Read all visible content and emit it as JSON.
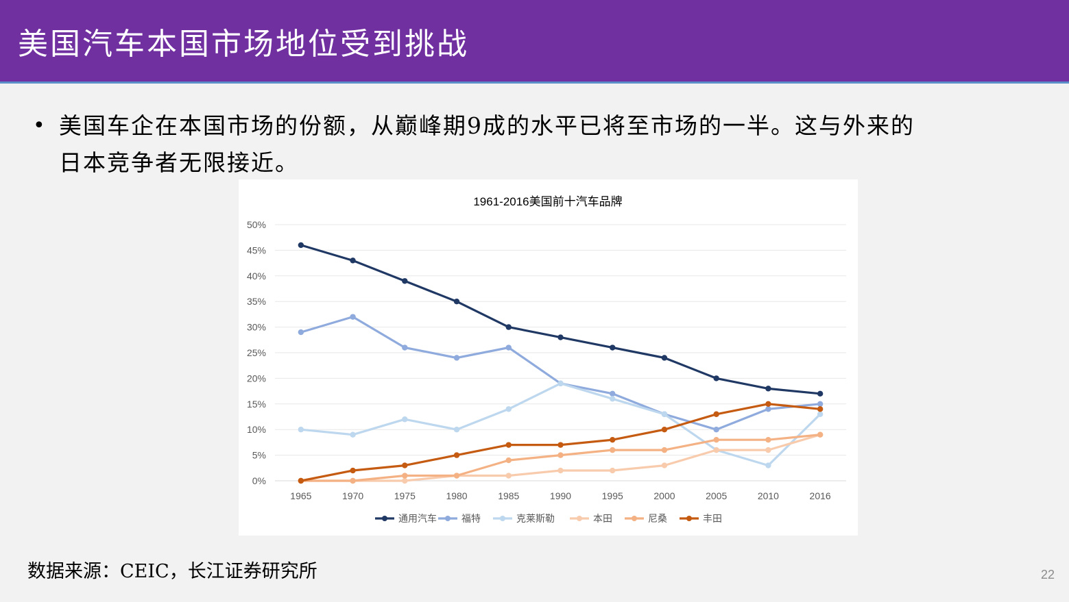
{
  "slide": {
    "title": "美国汽车本国市场地位受到挑战",
    "bullet_line1": "美国车企在本国市场的份额，从巅峰期9成的水平已将至市场的一半。这与外来的",
    "bullet_line2": "日本竞争者无限接近。",
    "source": "数据来源：CEIC，长江证券研究所",
    "page_number": "22"
  },
  "chart_data": {
    "type": "line",
    "title": "1961-2016美国前十汽车品牌",
    "xlabel": "",
    "ylabel": "",
    "ylim": [
      0,
      0.5
    ],
    "y_ticks": [
      "0%",
      "5%",
      "10%",
      "15%",
      "20%",
      "25%",
      "30%",
      "35%",
      "40%",
      "45%",
      "50%"
    ],
    "grid": true,
    "legend_position": "bottom",
    "categories": [
      "1965",
      "1970",
      "1975",
      "1980",
      "1985",
      "1990",
      "1995",
      "2000",
      "2005",
      "2010",
      "2016"
    ],
    "series": [
      {
        "name": "通用汽车",
        "color": "#203864",
        "values": [
          0.46,
          0.43,
          0.39,
          0.35,
          0.3,
          0.28,
          0.26,
          0.24,
          0.2,
          0.18,
          0.17
        ]
      },
      {
        "name": "福特",
        "color": "#8faadc",
        "values": [
          0.29,
          0.32,
          0.26,
          0.24,
          0.26,
          0.19,
          0.17,
          0.13,
          0.1,
          0.14,
          0.15
        ]
      },
      {
        "name": "克莱斯勒",
        "color": "#bdd7ee",
        "values": [
          0.1,
          0.09,
          0.12,
          0.1,
          0.14,
          0.19,
          0.16,
          0.13,
          0.06,
          0.03,
          0.13
        ]
      },
      {
        "name": "本田",
        "color": "#f8cbad",
        "values": [
          0.0,
          0.0,
          0.0,
          0.01,
          0.01,
          0.02,
          0.02,
          0.03,
          0.06,
          0.06,
          0.09
        ]
      },
      {
        "name": "尼桑",
        "color": "#f4b183",
        "values": [
          0.0,
          0.0,
          0.01,
          0.01,
          0.04,
          0.05,
          0.06,
          0.06,
          0.08,
          0.08,
          0.09
        ]
      },
      {
        "name": "丰田",
        "color": "#c55a11",
        "values": [
          0.0,
          0.02,
          0.03,
          0.05,
          0.07,
          0.07,
          0.08,
          0.1,
          0.13,
          0.15,
          0.14
        ]
      }
    ]
  }
}
